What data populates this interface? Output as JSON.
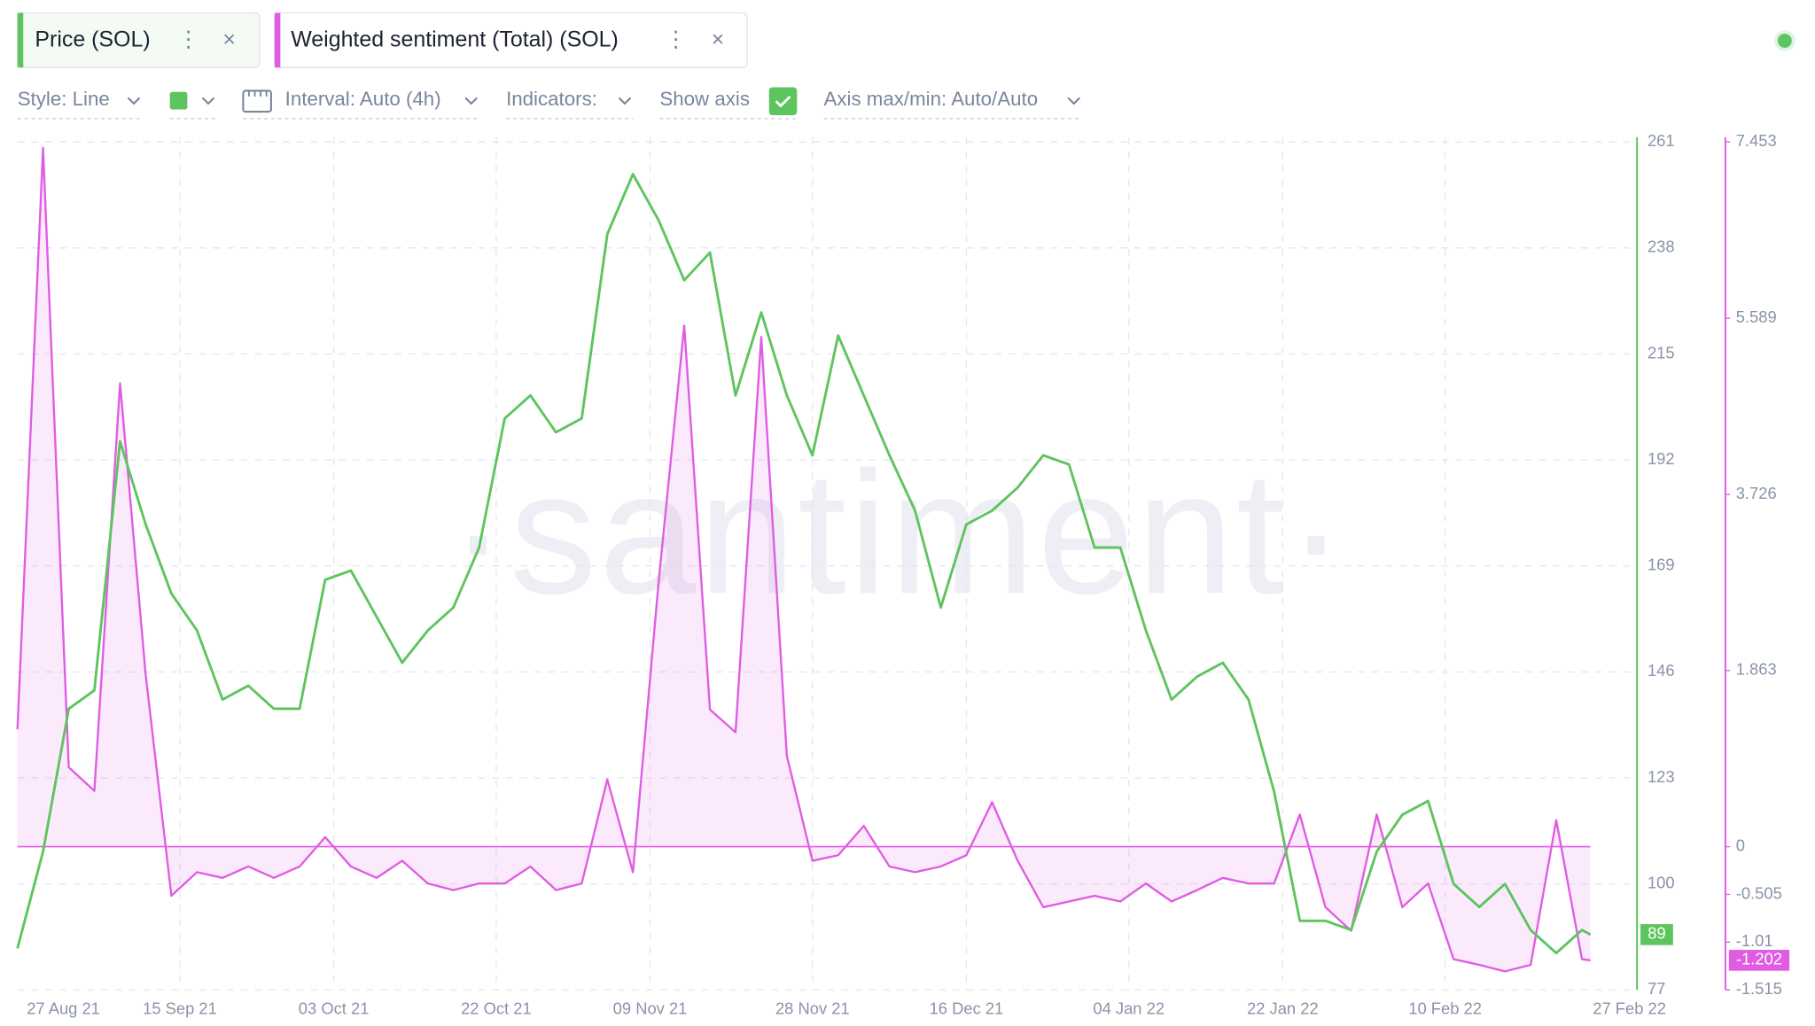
{
  "tabs": [
    "Price (SOL)",
    "Weighted sentiment (Total) (SOL)"
  ],
  "toolbar": {
    "style": "Style: Line",
    "interval": "Interval: Auto (4h)",
    "indicators": "Indicators:",
    "show_axis": "Show axis",
    "axis_range": "Axis max/min: Auto/Auto"
  },
  "chart_data": {
    "type": "line",
    "watermark": "·santiment·",
    "grid": true,
    "x": [
      "27 Aug 21",
      "30 Aug 21",
      "02 Sep 21",
      "05 Sep 21",
      "08 Sep 21",
      "11 Sep 21",
      "14 Sep 21",
      "17 Sep 21",
      "20 Sep 21",
      "23 Sep 21",
      "26 Sep 21",
      "29 Sep 21",
      "02 Oct 21",
      "05 Oct 21",
      "08 Oct 21",
      "11 Oct 21",
      "14 Oct 21",
      "17 Oct 21",
      "20 Oct 21",
      "23 Oct 21",
      "26 Oct 21",
      "29 Oct 21",
      "01 Nov 21",
      "04 Nov 21",
      "07 Nov 21",
      "10 Nov 21",
      "13 Nov 21",
      "16 Nov 21",
      "19 Nov 21",
      "22 Nov 21",
      "25 Nov 21",
      "28 Nov 21",
      "01 Dec 21",
      "04 Dec 21",
      "07 Dec 21",
      "10 Dec 21",
      "13 Dec 21",
      "16 Dec 21",
      "19 Dec 21",
      "22 Dec 21",
      "25 Dec 21",
      "28 Dec 21",
      "31 Dec 21",
      "03 Jan 22",
      "06 Jan 22",
      "09 Jan 22",
      "12 Jan 22",
      "15 Jan 22",
      "18 Jan 22",
      "21 Jan 22",
      "24 Jan 22",
      "27 Jan 22",
      "30 Jan 22",
      "02 Feb 22",
      "05 Feb 22",
      "08 Feb 22",
      "11 Feb 22",
      "14 Feb 22",
      "17 Feb 22",
      "20 Feb 22",
      "23 Feb 22",
      "26 Feb 22",
      "27 Feb 22"
    ],
    "xlim": [
      "27 Aug 21",
      "27 Feb 22"
    ],
    "xticks": [
      "27 Aug 21",
      "15 Sep 21",
      "03 Oct 21",
      "22 Oct 21",
      "09 Nov 21",
      "28 Nov 21",
      "16 Dec 21",
      "04 Jan 22",
      "22 Jan 22",
      "10 Feb 22",
      "27 Feb 22"
    ],
    "ylim": [
      77,
      261
    ],
    "yticks": [
      77,
      100,
      123,
      146,
      169,
      192,
      215,
      238,
      261
    ],
    "y2lim": [
      -1.515,
      7.453
    ],
    "y2ticks": [
      -1.515,
      -1.01,
      -0.505,
      0,
      1.863,
      3.726,
      5.589,
      7.453
    ],
    "series": [
      {
        "name": "Price (SOL)",
        "color": "#5ec45e",
        "values": [
          86,
          107,
          138,
          142,
          196,
          178,
          163,
          155,
          140,
          143,
          138,
          138,
          166,
          168,
          158,
          148,
          155,
          160,
          173,
          201,
          206,
          198,
          201,
          241,
          254,
          244,
          231,
          237,
          206,
          224,
          206,
          193,
          219,
          206,
          193,
          181,
          160,
          178,
          181,
          186,
          193,
          191,
          173,
          173,
          155,
          140,
          145,
          148,
          140,
          120,
          92,
          92,
          90,
          107,
          115,
          118,
          100,
          95,
          100,
          90,
          85,
          90,
          89
        ]
      },
      {
        "name": "Weighted sentiment (Total) (SOL)",
        "color": "#e05ce3",
        "axis": "y2",
        "values": [
          1.24,
          7.39,
          0.84,
          0.59,
          4.9,
          1.82,
          -0.52,
          -0.27,
          -0.33,
          -0.21,
          -0.33,
          -0.21,
          0.1,
          -0.21,
          -0.33,
          -0.15,
          -0.39,
          -0.46,
          -0.39,
          -0.39,
          -0.21,
          -0.46,
          -0.39,
          0.71,
          -0.27,
          2.8,
          5.51,
          1.45,
          1.21,
          5.39,
          0.96,
          -0.15,
          -0.09,
          0.22,
          -0.21,
          -0.27,
          -0.21,
          -0.09,
          0.47,
          -0.15,
          -0.64,
          -0.58,
          -0.52,
          -0.58,
          -0.39,
          -0.58,
          -0.46,
          -0.33,
          -0.39,
          -0.39,
          0.34,
          -0.64,
          -0.89,
          0.34,
          -0.64,
          -0.39,
          -1.19,
          -1.25,
          -1.32,
          -1.25,
          0.28,
          -1.19,
          -1.202
        ]
      }
    ]
  }
}
